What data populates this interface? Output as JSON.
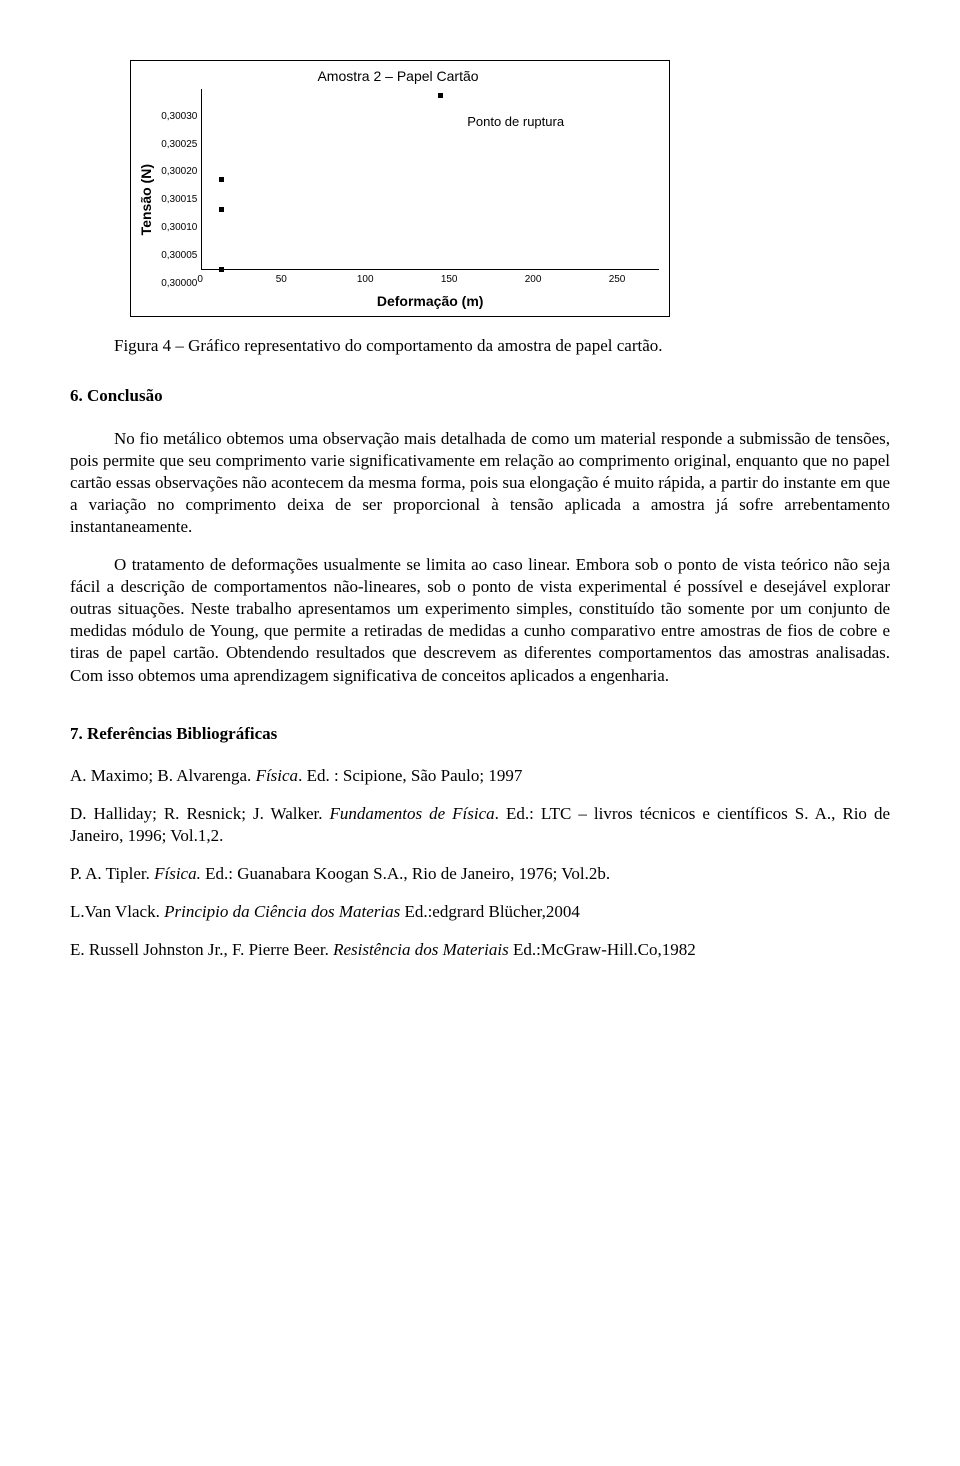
{
  "chart": {
    "type": "scatter",
    "title": "Amostra 2 – Papel Cartão",
    "ylabel": "Tensão (N)",
    "xlabel": "Deformação (m)",
    "yticks": [
      "0,30030",
      "0,30025",
      "0,30020",
      "0,30015",
      "0,30010",
      "0,30005",
      "0,30000"
    ],
    "xticks": [
      "0",
      "50",
      "100",
      "150",
      "200",
      "250"
    ],
    "ymin": 0.3,
    "ymax": 0.3003,
    "xmin": 0,
    "xmax": 250,
    "points": [
      {
        "x": 10,
        "y": 0.3
      },
      {
        "x": 10,
        "y": 0.3001
      },
      {
        "x": 10,
        "y": 0.30015
      },
      {
        "x": 130,
        "y": 0.30029
      }
    ],
    "rupture_label": "Ponto de ruptura",
    "border_color": "#000000",
    "point_color": "#000000",
    "background": "#ffffff",
    "title_font": "Arial",
    "title_fontsize": 14,
    "axis_fontsize": 14,
    "tick_fontsize": 10
  },
  "figure_caption": "Figura 4 – Gráfico representativo do comportamento da amostra de papel cartão.",
  "section6_heading": "6. Conclusão",
  "para1": "No fio metálico obtemos uma observação mais detalhada de como um material responde a submissão de tensões, pois permite que seu comprimento varie significativamente em relação ao comprimento original, enquanto que no papel cartão essas observações não acontecem da mesma forma, pois sua elongação é muito rápida, a partir do instante em que a variação no comprimento deixa de ser proporcional à tensão aplicada a amostra já sofre arrebentamento instantaneamente.",
  "para2": "O tratamento de deformações usualmente se limita ao caso linear. Embora sob o ponto de vista teórico não seja fácil a descrição de comportamentos não-lineares, sob o ponto de vista experimental é possível e desejável explorar outras situações. Neste trabalho apresentamos um experimento simples, constituído tão somente por um conjunto de medidas módulo de Young, que permite a retiradas de medidas a cunho comparativo entre amostras de fios de cobre e tiras de papel cartão. Obtendendo resultados que descrevem as diferentes comportamentos das amostras analisadas. Com isso obtemos uma aprendizagem significativa de conceitos aplicados a engenharia.",
  "refs_heading": "7. Referências Bibliográficas",
  "ref1_a": "A. Maximo; B. Alvarenga. ",
  "ref1_i": "Física",
  "ref1_b": ". Ed. : Scipione, São Paulo; 1997",
  "ref2_a": "D. Halliday; R. Resnick; J. Walker. ",
  "ref2_i": "Fundamentos de Física",
  "ref2_b": ". Ed.: LTC – livros técnicos e científicos S. A., Rio de Janeiro, 1996; Vol.1,2.",
  "ref3_a": "P. A. Tipler. ",
  "ref3_i": "Física.",
  "ref3_b": " Ed.: Guanabara Koogan S.A., Rio de Janeiro, 1976; Vol.2b.",
  "ref4_a": "L.Van Vlack. ",
  "ref4_i": "Principio da Ciência dos Materias",
  "ref4_b": " Ed.:edgrard Blücher,2004",
  "ref5_a": "E. Russell Johnston Jr., F. Pierre Beer. ",
  "ref5_i": "Resistência dos Materiais",
  "ref5_b": " Ed.:McGraw-Hill.Co,1982"
}
